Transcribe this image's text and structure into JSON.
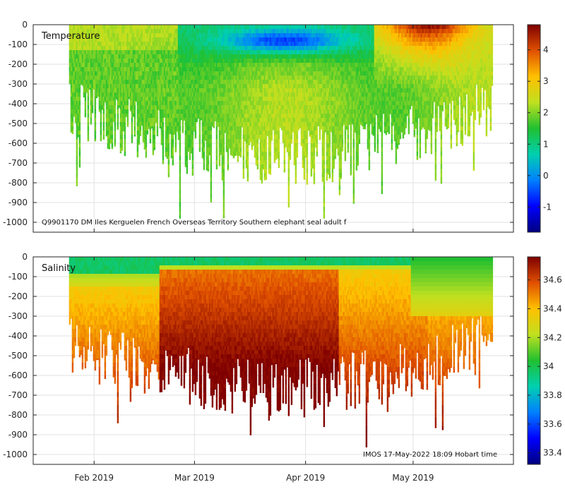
{
  "chart_data": [
    {
      "type": "heatmap",
      "title": "Temperature",
      "caption": "Q9901170 DM Iles Kerguelen French Overseas Territory Southern elephant seal adult f",
      "xlabel": "",
      "ylabel": "",
      "x_ticks": [
        "Feb 2019",
        "Mar 2019",
        "Apr 2019",
        "May 2019"
      ],
      "xlim": [
        "2019-01-15",
        "2019-05-29"
      ],
      "ylim": [
        -1050,
        0
      ],
      "y_ticks": [
        0,
        -100,
        -200,
        -300,
        -400,
        -500,
        -600,
        -700,
        -800,
        -900,
        -1000
      ],
      "grid": true,
      "colorbar": {
        "range": [
          -1.8,
          4.8
        ],
        "ticks": [
          -1,
          0,
          1,
          2,
          3,
          4
        ]
      },
      "data_extent": {
        "start_day": 10,
        "end_day": 128
      }
    },
    {
      "type": "heatmap",
      "title": "Salinity",
      "caption": "IMOS 17-May-2022 18:09 Hobart time",
      "xlabel": "",
      "ylabel": "",
      "x_ticks": [
        "Feb 2019",
        "Mar 2019",
        "Apr 2019",
        "May 2019"
      ],
      "xlim": [
        "2019-01-15",
        "2019-05-29"
      ],
      "ylim": [
        -1050,
        0
      ],
      "y_ticks": [
        0,
        -100,
        -200,
        -300,
        -400,
        -500,
        -600,
        -700,
        -800,
        -900,
        -1000
      ],
      "grid": true,
      "colorbar": {
        "range": [
          33.32,
          34.76
        ],
        "ticks": [
          33.4,
          33.6,
          33.8,
          34,
          34.2,
          34.4,
          34.6
        ]
      },
      "data_extent": {
        "start_day": 10,
        "end_day": 128
      }
    }
  ]
}
